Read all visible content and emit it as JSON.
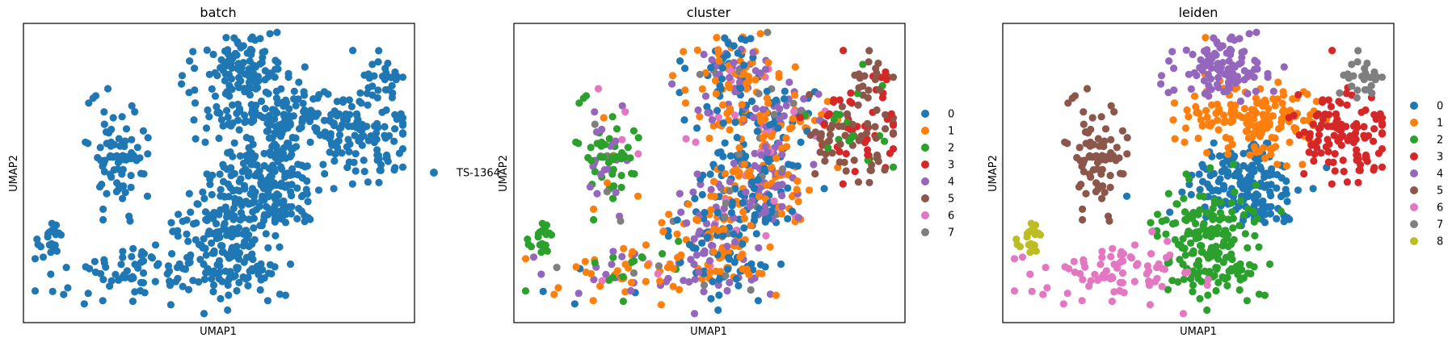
{
  "palette": [
    "#1f77b4",
    "#ff7f0e",
    "#2ca02c",
    "#d62728",
    "#9467bd",
    "#8c564b",
    "#e377c2",
    "#7f7f7f",
    "#bcbd22"
  ],
  "chart_data": [
    {
      "type": "scatter",
      "title": "batch",
      "xlabel": "UMAP1",
      "ylabel": "UMAP2",
      "xticks": false,
      "yticks": false,
      "legend": {
        "placement": "right",
        "entries": [
          "TS-1364"
        ]
      },
      "points_per_category": [
        1000
      ],
      "note": "single batch; all cells colored #1f77b4"
    },
    {
      "type": "scatter",
      "title": "cluster",
      "xlabel": "UMAP1",
      "ylabel": "UMAP2",
      "xticks": false,
      "yticks": false,
      "legend": {
        "placement": "right",
        "entries": [
          "0",
          "1",
          "2",
          "3",
          "4",
          "5",
          "6",
          "7"
        ]
      },
      "points_per_category": [
        260,
        260,
        70,
        70,
        200,
        90,
        30,
        20
      ]
    },
    {
      "type": "scatter",
      "title": "leiden",
      "xlabel": "UMAP1",
      "ylabel": "UMAP2",
      "xticks": false,
      "yticks": false,
      "legend": {
        "placement": "right",
        "entries": [
          "0",
          "1",
          "2",
          "3",
          "4",
          "5",
          "6",
          "7",
          "8"
        ]
      },
      "points_per_category": [
        170,
        170,
        190,
        110,
        100,
        80,
        80,
        25,
        20
      ]
    }
  ]
}
